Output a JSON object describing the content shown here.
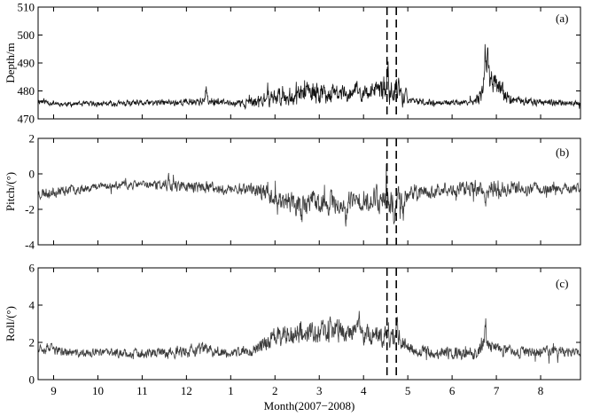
{
  "chart_data": [
    {
      "type": "line",
      "panel_tag": "(a)",
      "ylabel": "Depth/m",
      "ylim": [
        470,
        510
      ],
      "yticks": [
        470,
        480,
        490,
        500,
        510
      ],
      "xlim": [
        8.65,
        20.9
      ],
      "color": "#111111",
      "vlines": [
        16.53,
        16.74
      ],
      "baseline": [
        [
          8.65,
          476.5
        ],
        [
          9.2,
          475.3
        ],
        [
          10,
          475.3
        ],
        [
          11,
          475.6
        ],
        [
          12,
          476.0
        ],
        [
          12.5,
          476.6
        ],
        [
          13,
          475.5
        ],
        [
          13.5,
          475.7
        ],
        [
          14,
          478.0
        ],
        [
          14.5,
          478.5
        ],
        [
          15,
          479.0
        ],
        [
          15.5,
          479.2
        ],
        [
          16,
          479.2
        ],
        [
          16.5,
          480.5
        ],
        [
          16.85,
          478.5
        ],
        [
          17,
          476.4
        ],
        [
          17.5,
          475.8
        ],
        [
          18,
          475.8
        ],
        [
          18.5,
          476.0
        ],
        [
          18.65,
          478.0
        ],
        [
          18.75,
          484.0
        ],
        [
          18.9,
          484.0
        ],
        [
          19.1,
          480.0
        ],
        [
          19.3,
          476.8
        ],
        [
          19.8,
          476.0
        ],
        [
          20.3,
          475.8
        ],
        [
          20.9,
          475.5
        ]
      ],
      "noise": [
        [
          8.65,
          1.5
        ],
        [
          9.2,
          1.0
        ],
        [
          11.3,
          1.3
        ],
        [
          12.4,
          1.8
        ],
        [
          13.0,
          1.2
        ],
        [
          13.6,
          2.5
        ],
        [
          14.0,
          3.8
        ],
        [
          14.4,
          3.8
        ],
        [
          15.0,
          4.5
        ],
        [
          15.4,
          3.5
        ],
        [
          15.8,
          3.2
        ],
        [
          16.3,
          3.8
        ],
        [
          16.5,
          5.5
        ],
        [
          16.9,
          4.5
        ],
        [
          17.0,
          1.5
        ],
        [
          17.8,
          1.1
        ],
        [
          18.5,
          1.2
        ],
        [
          18.8,
          6.5
        ],
        [
          19.1,
          4.0
        ],
        [
          19.3,
          2.0
        ],
        [
          20.9,
          1.0
        ]
      ],
      "spikes": [
        [
          16.55,
          9.5
        ],
        [
          16.8,
          8.5
        ],
        [
          16.95,
          7.0
        ],
        [
          18.75,
          17.0
        ],
        [
          18.8,
          13.0
        ],
        [
          14.72,
          5.5
        ],
        [
          15.85,
          5.0
        ],
        [
          12.45,
          4.0
        ]
      ],
      "seed": 11
    },
    {
      "type": "line",
      "panel_tag": "(b)",
      "ylabel": "Pitch/(°)",
      "ylim": [
        -4,
        2
      ],
      "yticks": [
        -4,
        -2,
        0,
        2
      ],
      "xlim": [
        8.65,
        20.9
      ],
      "color": "#3a3a3a",
      "vlines": [
        16.53,
        16.74
      ],
      "baseline": [
        [
          8.65,
          -1.1
        ],
        [
          9.2,
          -0.95
        ],
        [
          10,
          -0.7
        ],
        [
          11,
          -0.6
        ],
        [
          12,
          -0.7
        ],
        [
          12.9,
          -0.9
        ],
        [
          13.4,
          -0.8
        ],
        [
          13.8,
          -1.1
        ],
        [
          14.1,
          -1.4
        ],
        [
          14.5,
          -1.7
        ],
        [
          15,
          -1.6
        ],
        [
          15.5,
          -1.7
        ],
        [
          16,
          -1.5
        ],
        [
          16.3,
          -1.3
        ],
        [
          16.6,
          -1.5
        ],
        [
          17,
          -1.2
        ],
        [
          17.5,
          -1.0
        ],
        [
          18,
          -0.9
        ],
        [
          18.5,
          -0.8
        ],
        [
          19,
          -0.9
        ],
        [
          19.5,
          -0.8
        ],
        [
          20,
          -0.85
        ],
        [
          20.9,
          -0.8
        ]
      ],
      "noise": [
        [
          8.65,
          0.4
        ],
        [
          10,
          0.25
        ],
        [
          11,
          0.25
        ],
        [
          11.5,
          0.35
        ],
        [
          12.5,
          0.4
        ],
        [
          13.5,
          0.4
        ],
        [
          14.0,
          0.6
        ],
        [
          14.5,
          0.8
        ],
        [
          15.0,
          0.8
        ],
        [
          15.5,
          0.7
        ],
        [
          16.0,
          0.7
        ],
        [
          16.6,
          1.0
        ],
        [
          17.0,
          0.5
        ],
        [
          18.0,
          0.45
        ],
        [
          18.8,
          0.55
        ],
        [
          20.0,
          0.35
        ],
        [
          20.9,
          0.3
        ]
      ],
      "spikes": [
        [
          11.6,
          0.9
        ],
        [
          16.7,
          -2.1
        ],
        [
          16.9,
          -1.7
        ],
        [
          18.75,
          -1.4
        ],
        [
          14.6,
          -1.0
        ],
        [
          15.6,
          -1.0
        ]
      ],
      "seed": 23
    },
    {
      "type": "line",
      "panel_tag": "(c)",
      "ylabel": "Roll/(°)",
      "ylim": [
        0,
        6
      ],
      "yticks": [
        0,
        2,
        4,
        6
      ],
      "xlim": [
        8.65,
        20.9
      ],
      "color": "#3a3a3a",
      "vlines": [
        16.53,
        16.74
      ],
      "baseline": [
        [
          8.65,
          1.8
        ],
        [
          9.2,
          1.5
        ],
        [
          9.6,
          1.4
        ],
        [
          10,
          1.45
        ],
        [
          11,
          1.4
        ],
        [
          12,
          1.5
        ],
        [
          12.5,
          1.6
        ],
        [
          13,
          1.4
        ],
        [
          13.5,
          1.6
        ],
        [
          14,
          2.3
        ],
        [
          14.5,
          2.5
        ],
        [
          15,
          2.6
        ],
        [
          15.5,
          2.6
        ],
        [
          16,
          2.5
        ],
        [
          16.5,
          2.4
        ],
        [
          16.8,
          2.3
        ],
        [
          17,
          1.7
        ],
        [
          17.5,
          1.45
        ],
        [
          18,
          1.4
        ],
        [
          18.5,
          1.4
        ],
        [
          18.7,
          1.9
        ],
        [
          19,
          1.6
        ],
        [
          19.5,
          1.5
        ],
        [
          20,
          1.5
        ],
        [
          20.5,
          1.55
        ],
        [
          20.9,
          1.45
        ]
      ],
      "noise": [
        [
          8.65,
          0.35
        ],
        [
          9.5,
          0.25
        ],
        [
          11.2,
          0.3
        ],
        [
          12.4,
          0.45
        ],
        [
          13.0,
          0.25
        ],
        [
          13.8,
          0.5
        ],
        [
          14.2,
          0.7
        ],
        [
          15.0,
          0.75
        ],
        [
          15.8,
          0.7
        ],
        [
          16.3,
          0.6
        ],
        [
          16.6,
          0.9
        ],
        [
          17.0,
          0.4
        ],
        [
          17.5,
          0.35
        ],
        [
          18.8,
          0.5
        ],
        [
          19.5,
          0.35
        ],
        [
          20.9,
          0.3
        ]
      ],
      "spikes": [
        [
          16.75,
          1.7
        ],
        [
          15.9,
          1.0
        ],
        [
          18.75,
          1.6
        ],
        [
          17.15,
          -0.55
        ],
        [
          14.3,
          0.8
        ]
      ],
      "seed": 37
    }
  ],
  "x_axis": {
    "label": "Month(2007−2008)",
    "ticks": [
      {
        "value": 9,
        "label": "9"
      },
      {
        "value": 10,
        "label": "10"
      },
      {
        "value": 11,
        "label": "11"
      },
      {
        "value": 12,
        "label": "12"
      },
      {
        "value": 13,
        "label": "1"
      },
      {
        "value": 14,
        "label": "2"
      },
      {
        "value": 15,
        "label": "3"
      },
      {
        "value": 16,
        "label": "4"
      },
      {
        "value": 17,
        "label": "5"
      },
      {
        "value": 18,
        "label": "6"
      },
      {
        "value": 19,
        "label": "7"
      },
      {
        "value": 20,
        "label": "8"
      }
    ]
  }
}
